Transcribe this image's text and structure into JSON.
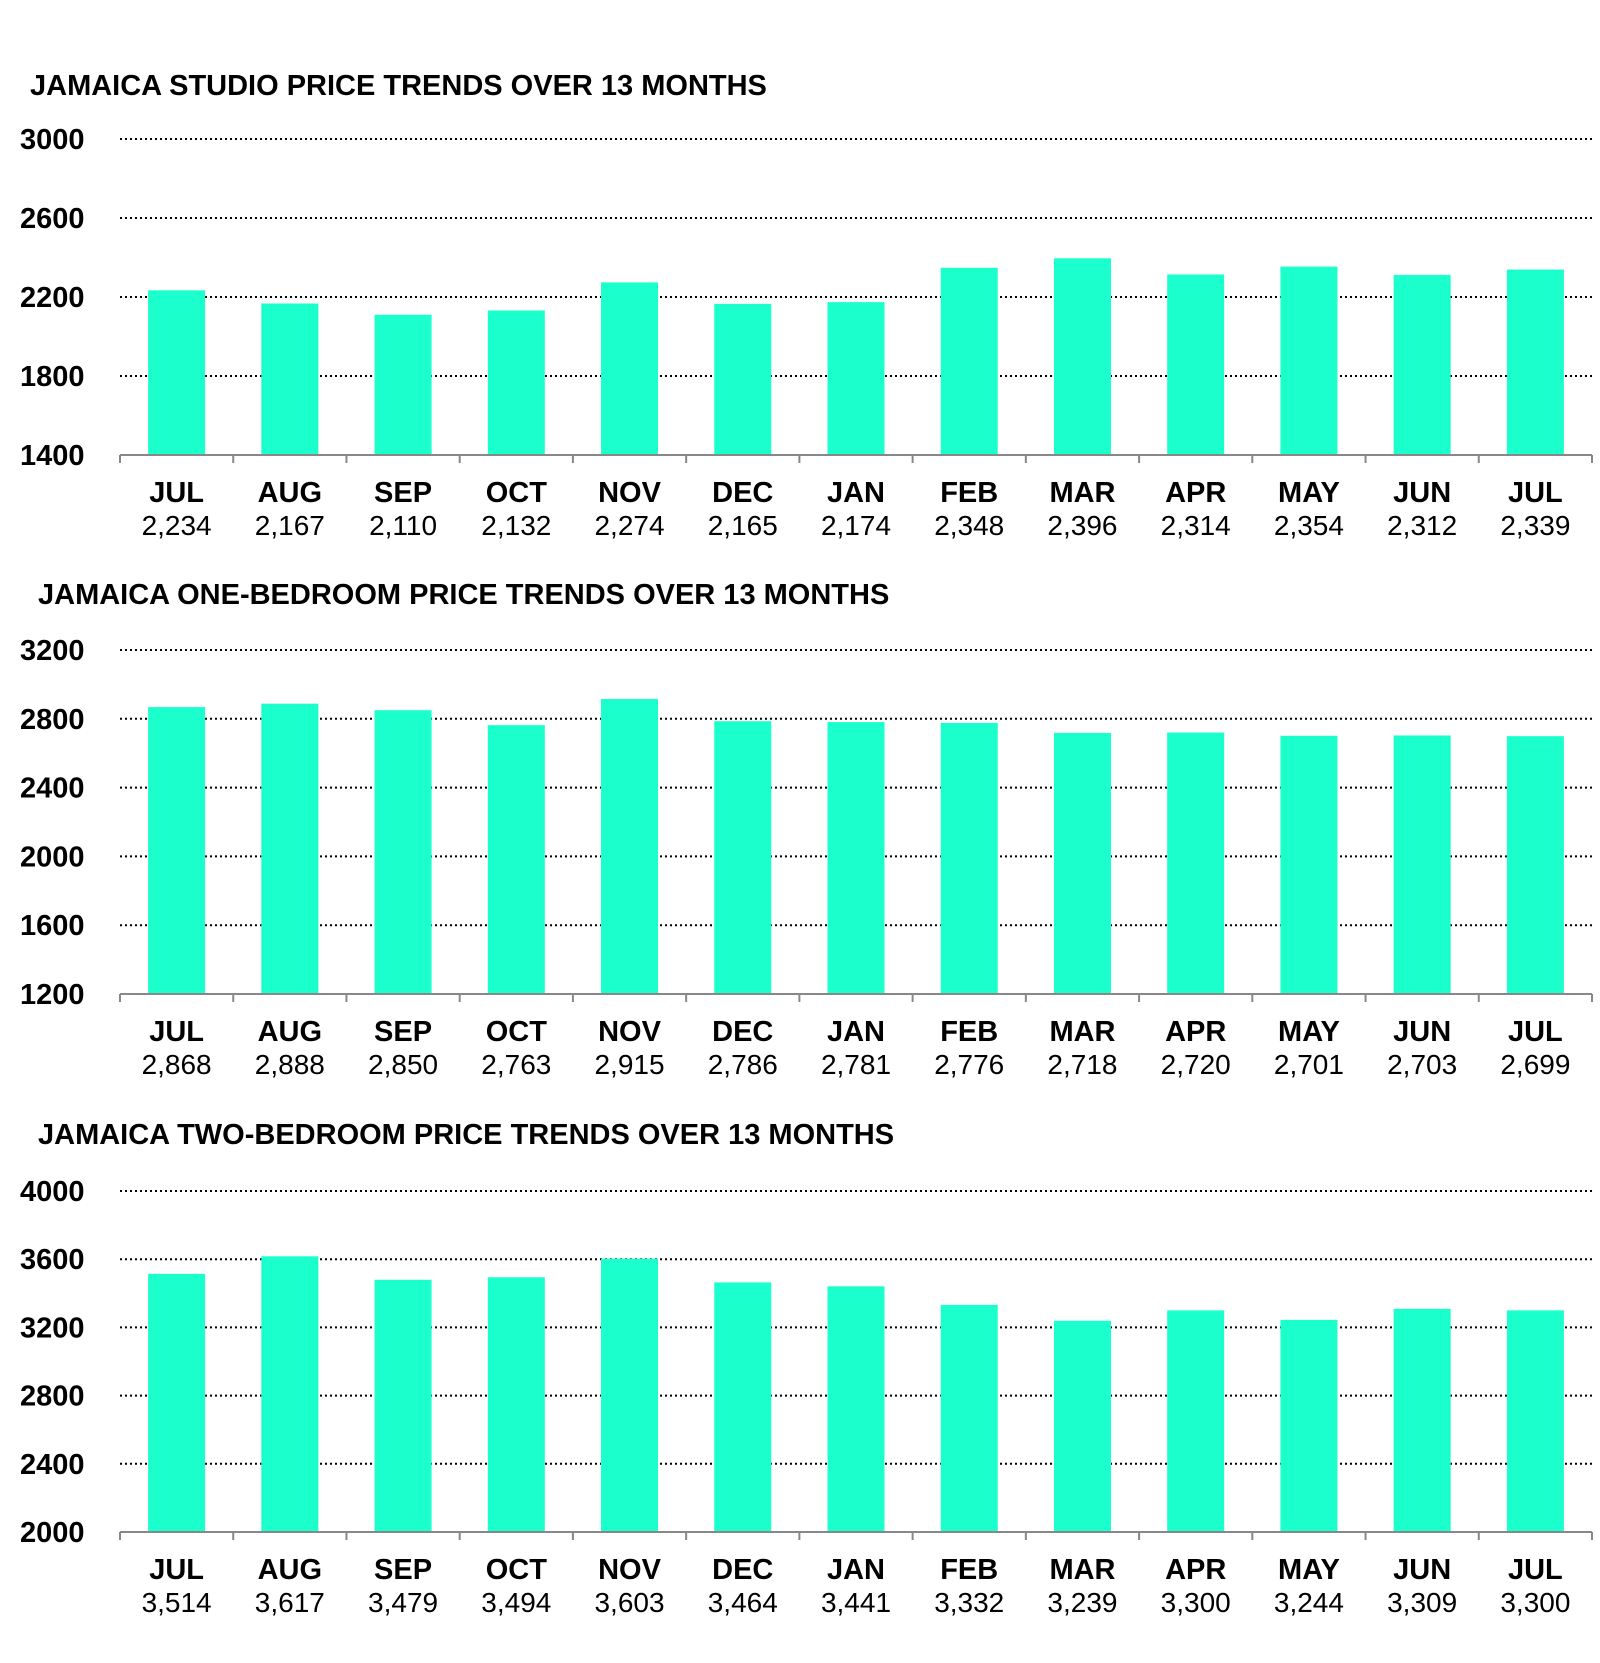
{
  "colors": {
    "bar": "#1affcc",
    "grid": "#000000",
    "axis": "#888888",
    "text": "#000000"
  },
  "chart_data": [
    {
      "type": "bar",
      "title": "JAMAICA STUDIO PRICE TRENDS OVER 13 MONTHS",
      "categories": [
        "JUL",
        "AUG",
        "SEP",
        "OCT",
        "NOV",
        "DEC",
        "JAN",
        "FEB",
        "MAR",
        "APR",
        "MAY",
        "JUN",
        "JUL"
      ],
      "values": [
        2234,
        2167,
        2110,
        2132,
        2274,
        2165,
        2174,
        2348,
        2396,
        2314,
        2354,
        2312,
        2339
      ],
      "value_labels": [
        "2,234",
        "2,167",
        "2,110",
        "2,132",
        "2,274",
        "2,165",
        "2,174",
        "2,348",
        "2,396",
        "2,314",
        "2,354",
        "2,312",
        "2,339"
      ],
      "ylim": [
        1400,
        3000
      ],
      "yticks": [
        1400,
        1800,
        2200,
        2600,
        3000
      ],
      "grid": "dotted horizontal"
    },
    {
      "type": "bar",
      "title": "JAMAICA ONE-BEDROOM PRICE TRENDS OVER 13 MONTHS",
      "categories": [
        "JUL",
        "AUG",
        "SEP",
        "OCT",
        "NOV",
        "DEC",
        "JAN",
        "FEB",
        "MAR",
        "APR",
        "MAY",
        "JUN",
        "JUL"
      ],
      "values": [
        2868,
        2888,
        2850,
        2763,
        2915,
        2786,
        2781,
        2776,
        2718,
        2720,
        2701,
        2703,
        2699
      ],
      "value_labels": [
        "2,868",
        "2,888",
        "2,850",
        "2,763",
        "2,915",
        "2,786",
        "2,781",
        "2,776",
        "2,718",
        "2,720",
        "2,701",
        "2,703",
        "2,699"
      ],
      "ylim": [
        1200,
        3200
      ],
      "yticks": [
        1200,
        1600,
        2000,
        2400,
        2800,
        3200
      ],
      "grid": "dotted horizontal"
    },
    {
      "type": "bar",
      "title": "JAMAICA TWO-BEDROOM PRICE TRENDS OVER 13 MONTHS",
      "categories": [
        "JUL",
        "AUG",
        "SEP",
        "OCT",
        "NOV",
        "DEC",
        "JAN",
        "FEB",
        "MAR",
        "APR",
        "MAY",
        "JUN",
        "JUL"
      ],
      "values": [
        3514,
        3617,
        3479,
        3494,
        3603,
        3464,
        3441,
        3332,
        3239,
        3300,
        3244,
        3309,
        3300
      ],
      "value_labels": [
        "3,514",
        "3,617",
        "3,479",
        "3,494",
        "3,603",
        "3,464",
        "3,441",
        "3,332",
        "3,239",
        "3,300",
        "3,244",
        "3,309",
        "3,300"
      ],
      "ylim": [
        2000,
        4000
      ],
      "yticks": [
        2000,
        2400,
        2800,
        3200,
        3600,
        4000
      ],
      "grid": "dotted horizontal"
    }
  ]
}
